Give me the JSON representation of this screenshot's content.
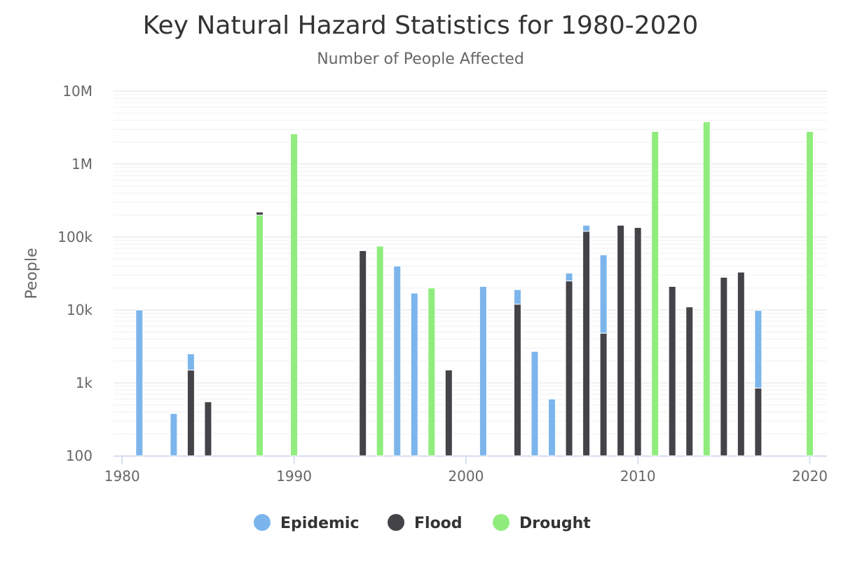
{
  "chart_data": {
    "type": "bar",
    "title": "Key Natural Hazard Statistics for 1980-2020",
    "subtitle": "Number of People Affected",
    "ylabel": "People",
    "xlabel": "",
    "y_scale": "log",
    "ylim": [
      100,
      10000000
    ],
    "xlim": [
      1979.5,
      2021
    ],
    "stacked": true,
    "grid": true,
    "legend_position": "bottom",
    "y_ticks": [
      {
        "value": 100,
        "label": "100"
      },
      {
        "value": 1000,
        "label": "1k"
      },
      {
        "value": 10000,
        "label": "10k"
      },
      {
        "value": 100000,
        "label": "100k"
      },
      {
        "value": 1000000,
        "label": "1M"
      },
      {
        "value": 10000000,
        "label": "10M"
      }
    ],
    "x_ticks": [
      {
        "value": 1980,
        "label": "1980"
      },
      {
        "value": 1990,
        "label": "1990"
      },
      {
        "value": 2000,
        "label": "2000"
      },
      {
        "value": 2010,
        "label": "2010"
      },
      {
        "value": 2020,
        "label": "2020"
      }
    ],
    "series": [
      {
        "name": "Epidemic",
        "color": "#7cb5ec",
        "points": [
          {
            "x": 1981,
            "y": 10000
          },
          {
            "x": 1983,
            "y": 380
          },
          {
            "x": 1984,
            "y": 1000
          },
          {
            "x": 1996,
            "y": 40000
          },
          {
            "x": 1997,
            "y": 17000
          },
          {
            "x": 2001,
            "y": 21000
          },
          {
            "x": 2003,
            "y": 7000
          },
          {
            "x": 2004,
            "y": 2700
          },
          {
            "x": 2005,
            "y": 600
          },
          {
            "x": 2006,
            "y": 7000
          },
          {
            "x": 2007,
            "y": 25000
          },
          {
            "x": 2008,
            "y": 52000
          },
          {
            "x": 2017,
            "y": 9000
          }
        ]
      },
      {
        "name": "Flood",
        "color": "#434348",
        "points": [
          {
            "x": 1984,
            "y": 1500
          },
          {
            "x": 1985,
            "y": 550
          },
          {
            "x": 1988,
            "y": 20000
          },
          {
            "x": 1994,
            "y": 65000
          },
          {
            "x": 1999,
            "y": 1500
          },
          {
            "x": 2003,
            "y": 12000
          },
          {
            "x": 2006,
            "y": 25000
          },
          {
            "x": 2007,
            "y": 120000
          },
          {
            "x": 2008,
            "y": 4800
          },
          {
            "x": 2009,
            "y": 145000
          },
          {
            "x": 2010,
            "y": 135000
          },
          {
            "x": 2012,
            "y": 21000
          },
          {
            "x": 2013,
            "y": 11000
          },
          {
            "x": 2015,
            "y": 28000
          },
          {
            "x": 2016,
            "y": 33000
          },
          {
            "x": 2017,
            "y": 850
          }
        ]
      },
      {
        "name": "Drought",
        "color": "#90ed7d",
        "points": [
          {
            "x": 1988,
            "y": 200000
          },
          {
            "x": 1990,
            "y": 2600000
          },
          {
            "x": 1995,
            "y": 75000
          },
          {
            "x": 1998,
            "y": 20000
          },
          {
            "x": 2011,
            "y": 2800000
          },
          {
            "x": 2014,
            "y": 3800000
          },
          {
            "x": 2020,
            "y": 2800000
          }
        ]
      }
    ]
  }
}
